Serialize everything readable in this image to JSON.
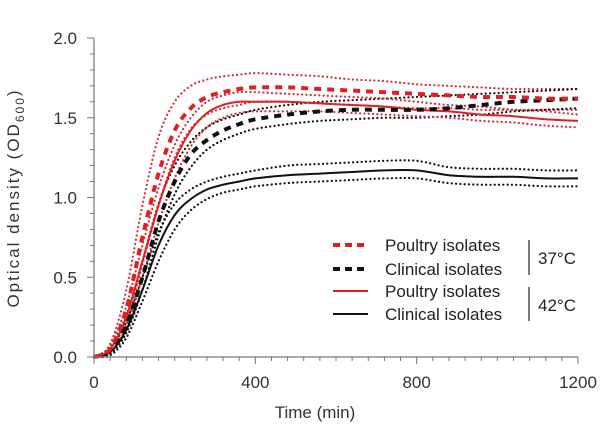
{
  "chart_data": {
    "type": "line",
    "title": "",
    "xlabel": "Time (min)",
    "ylabel": "Optical density (OD 600)",
    "ylabel_main": "Optical density (OD",
    "ylabel_sub": "600",
    "ylabel_close": ")",
    "xlim": [
      0,
      1200
    ],
    "ylim": [
      0.0,
      2.0
    ],
    "xticks": [
      0,
      400,
      800,
      1200
    ],
    "xtick_labels": [
      "0",
      "400",
      "800",
      "1200"
    ],
    "x_minor_step": 40,
    "yticks": [
      0.0,
      0.5,
      1.0,
      1.5,
      2.0
    ],
    "ytick_labels": [
      "0.0",
      "0.5",
      "1.0",
      "1.5",
      "2.0"
    ],
    "y_minor_step": 0.1,
    "grid": false,
    "legend_position": "center-right",
    "legend_groups": [
      {
        "label": "37°C",
        "entries": [
          0,
          1
        ]
      },
      {
        "label": "42°C",
        "entries": [
          2,
          3
        ]
      }
    ],
    "x": [
      0,
      40,
      80,
      120,
      160,
      200,
      240,
      280,
      320,
      360,
      400,
      480,
      560,
      640,
      720,
      800,
      880,
      960,
      1040,
      1120,
      1200
    ],
    "series": [
      {
        "name": "Poultry isolates",
        "group": "37°C",
        "color": "#e02020",
        "style": "dashed",
        "values": [
          0.0,
          0.05,
          0.3,
          0.75,
          1.15,
          1.42,
          1.56,
          1.63,
          1.66,
          1.68,
          1.69,
          1.69,
          1.68,
          1.67,
          1.66,
          1.65,
          1.64,
          1.63,
          1.63,
          1.62,
          1.62
        ],
        "upper": [
          0.0,
          0.08,
          0.42,
          0.95,
          1.38,
          1.6,
          1.7,
          1.74,
          1.76,
          1.77,
          1.78,
          1.77,
          1.76,
          1.74,
          1.73,
          1.71,
          1.7,
          1.69,
          1.68,
          1.68,
          1.68
        ],
        "lower": [
          0.0,
          0.03,
          0.2,
          0.58,
          0.95,
          1.25,
          1.43,
          1.52,
          1.56,
          1.58,
          1.6,
          1.6,
          1.59,
          1.58,
          1.57,
          1.56,
          1.56,
          1.55,
          1.55,
          1.55,
          1.55
        ]
      },
      {
        "name": "Clinical isolates",
        "group": "37°C",
        "color": "#111111",
        "style": "dashed",
        "values": [
          0.0,
          0.04,
          0.2,
          0.5,
          0.85,
          1.1,
          1.27,
          1.36,
          1.42,
          1.46,
          1.49,
          1.52,
          1.54,
          1.55,
          1.55,
          1.55,
          1.56,
          1.58,
          1.6,
          1.61,
          1.62
        ],
        "upper": [
          0.0,
          0.06,
          0.26,
          0.6,
          0.96,
          1.2,
          1.35,
          1.44,
          1.49,
          1.52,
          1.55,
          1.58,
          1.6,
          1.61,
          1.62,
          1.63,
          1.64,
          1.65,
          1.66,
          1.67,
          1.68
        ],
        "lower": [
          0.0,
          0.02,
          0.15,
          0.42,
          0.76,
          1.02,
          1.19,
          1.3,
          1.36,
          1.4,
          1.43,
          1.46,
          1.48,
          1.49,
          1.5,
          1.5,
          1.51,
          1.52,
          1.54,
          1.55,
          1.56
        ]
      },
      {
        "name": "Poultry isolates",
        "group": "42°C",
        "color": "#e02020",
        "style": "solid",
        "values": [
          0.0,
          0.05,
          0.25,
          0.6,
          0.95,
          1.23,
          1.42,
          1.53,
          1.58,
          1.6,
          1.6,
          1.6,
          1.59,
          1.58,
          1.57,
          1.55,
          1.54,
          1.52,
          1.51,
          1.49,
          1.48
        ],
        "upper": [
          0.0,
          0.07,
          0.32,
          0.7,
          1.06,
          1.33,
          1.5,
          1.6,
          1.64,
          1.66,
          1.66,
          1.65,
          1.64,
          1.63,
          1.62,
          1.6,
          1.58,
          1.57,
          1.55,
          1.54,
          1.52
        ],
        "lower": [
          0.0,
          0.03,
          0.18,
          0.5,
          0.84,
          1.12,
          1.32,
          1.44,
          1.5,
          1.53,
          1.54,
          1.54,
          1.54,
          1.53,
          1.52,
          1.51,
          1.5,
          1.48,
          1.47,
          1.45,
          1.44
        ]
      },
      {
        "name": "Clinical isolates",
        "group": "42°C",
        "color": "#111111",
        "style": "solid",
        "values": [
          0.0,
          0.03,
          0.17,
          0.42,
          0.7,
          0.89,
          0.99,
          1.05,
          1.08,
          1.1,
          1.12,
          1.14,
          1.15,
          1.16,
          1.17,
          1.17,
          1.14,
          1.13,
          1.13,
          1.12,
          1.12
        ],
        "upper": [
          0.0,
          0.05,
          0.22,
          0.5,
          0.78,
          0.96,
          1.05,
          1.1,
          1.13,
          1.15,
          1.17,
          1.2,
          1.21,
          1.22,
          1.23,
          1.23,
          1.19,
          1.18,
          1.18,
          1.17,
          1.17
        ],
        "lower": [
          0.0,
          0.01,
          0.12,
          0.35,
          0.6,
          0.8,
          0.92,
          0.99,
          1.03,
          1.05,
          1.07,
          1.09,
          1.1,
          1.11,
          1.12,
          1.12,
          1.09,
          1.08,
          1.08,
          1.07,
          1.07
        ]
      }
    ]
  }
}
